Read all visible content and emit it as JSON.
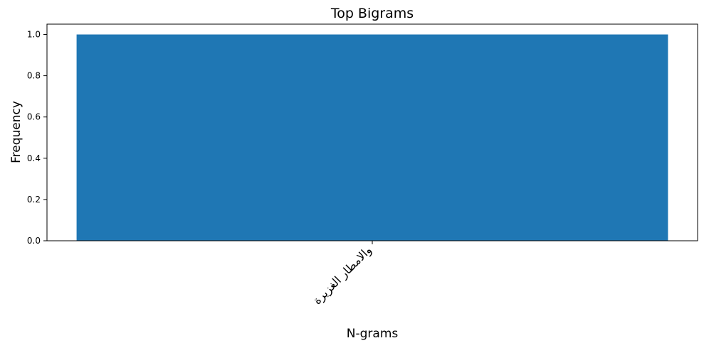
{
  "chart_data": {
    "type": "bar",
    "title": "Top Bigrams",
    "xlabel": "N-grams",
    "ylabel": "Frequency",
    "categories": [
      "والامطار الغزيرة"
    ],
    "values": [
      1.0
    ],
    "ylim": [
      0,
      1.05
    ],
    "yticks": [
      "0.0",
      "0.2",
      "0.4",
      "0.6",
      "0.8",
      "1.0"
    ],
    "grid": false,
    "legend": "none",
    "bar_color": "#1f77b4"
  }
}
